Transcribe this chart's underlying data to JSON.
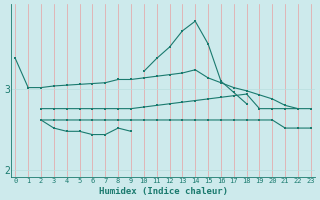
{
  "xlabel": "Humidex (Indice chaleur)",
  "ylabel": "",
  "bg_color": "#cdeaec",
  "line_color": "#1a7a6e",
  "grid_color_v": "#e8a0a0",
  "grid_color_h": "#b8dede",
  "x": [
    0,
    1,
    2,
    3,
    4,
    5,
    6,
    7,
    8,
    9,
    10,
    11,
    12,
    13,
    14,
    15,
    16,
    17,
    18,
    19,
    20,
    21,
    22,
    23
  ],
  "curve1": [
    3.38,
    3.02,
    3.02,
    3.04,
    3.05,
    3.06,
    3.07,
    3.08,
    3.12,
    3.12,
    3.14,
    3.16,
    3.18,
    3.2,
    3.24,
    3.14,
    3.08,
    3.02,
    2.98,
    2.93,
    2.88,
    2.8,
    2.76,
    2.76
  ],
  "curve2": [
    null,
    null,
    2.76,
    2.76,
    2.76,
    2.76,
    2.76,
    2.76,
    2.76,
    2.76,
    2.78,
    2.8,
    2.82,
    2.84,
    2.86,
    2.88,
    2.9,
    2.92,
    2.94,
    2.76,
    2.76,
    2.76,
    2.76,
    null
  ],
  "curve3": [
    null,
    null,
    2.62,
    2.52,
    2.48,
    2.48,
    2.44,
    2.44,
    2.52,
    2.48,
    null,
    null,
    null,
    null,
    null,
    null,
    null,
    null,
    null,
    null,
    null,
    null,
    null,
    null
  ],
  "curve4": [
    null,
    null,
    2.62,
    2.62,
    2.62,
    2.62,
    2.62,
    2.62,
    2.62,
    2.62,
    2.62,
    2.62,
    2.62,
    2.62,
    2.62,
    2.62,
    2.62,
    2.62,
    2.62,
    2.62,
    2.62,
    2.52,
    2.52,
    2.52
  ],
  "curve5": [
    null,
    null,
    null,
    null,
    null,
    null,
    null,
    null,
    null,
    null,
    3.22,
    3.38,
    3.52,
    3.72,
    3.84,
    3.56,
    3.1,
    2.96,
    2.82,
    null,
    null,
    null,
    null,
    null
  ],
  "ylim": [
    1.92,
    4.05
  ],
  "yticks": [
    2.0,
    3.0
  ],
  "xlim": [
    -0.3,
    23.3
  ]
}
